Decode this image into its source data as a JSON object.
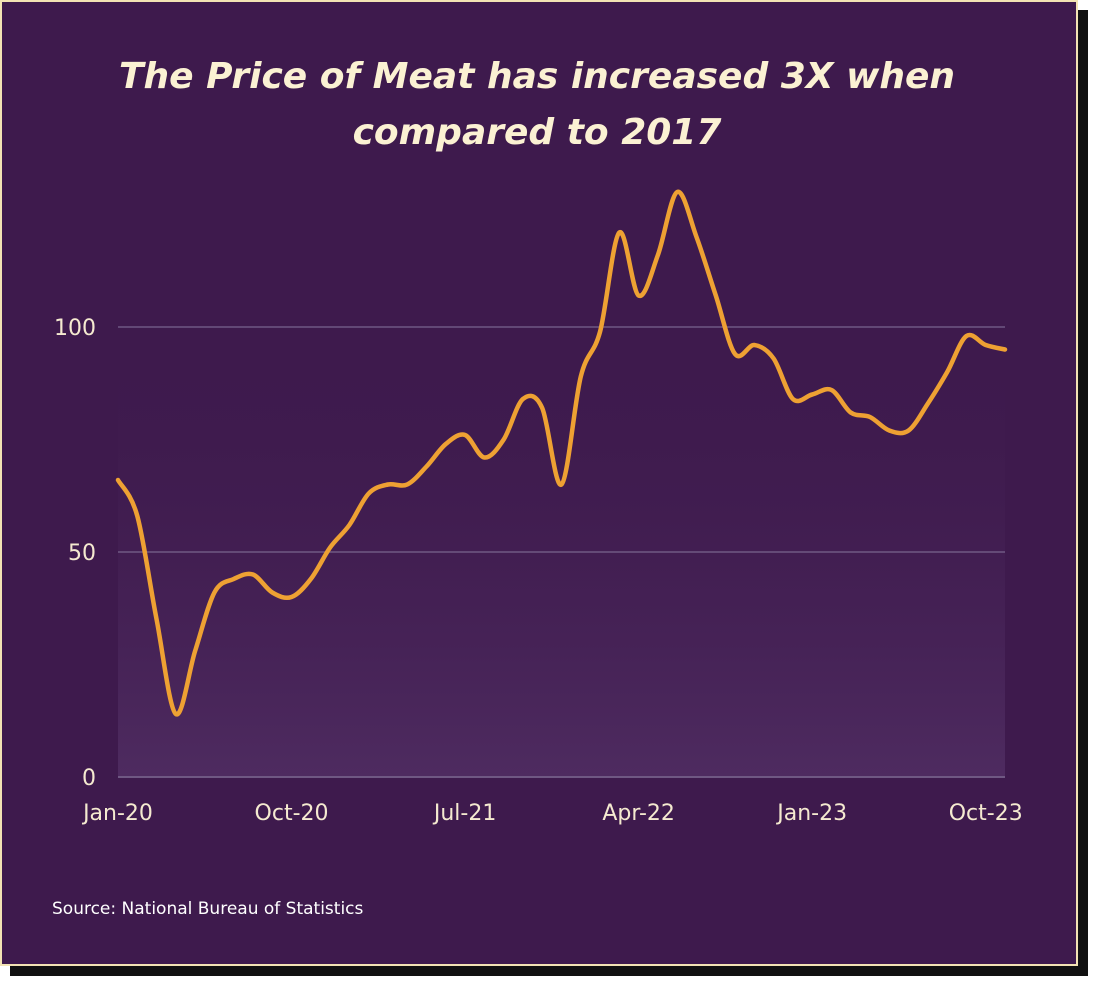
{
  "chart_data": {
    "type": "line",
    "title_lines": [
      "The Price of Meat has increased 3X when",
      "compared to 2017"
    ],
    "source": "Source: National Bureau of Statistics",
    "xlabel": "",
    "ylabel": "",
    "ylim": [
      0,
      130
    ],
    "grid": "horizontal",
    "y_ticks": [
      0,
      50,
      100
    ],
    "x_ticks": [
      "Jan-20",
      "Oct-20",
      "Jul-21",
      "Apr-22",
      "Jan-23",
      "Oct-23"
    ],
    "x": [
      "Jan-20",
      "Feb-20",
      "Mar-20",
      "Apr-20",
      "May-20",
      "Jun-20",
      "Jul-20",
      "Aug-20",
      "Sep-20",
      "Oct-20",
      "Nov-20",
      "Dec-20",
      "Jan-21",
      "Feb-21",
      "Mar-21",
      "Apr-21",
      "May-21",
      "Jun-21",
      "Jul-21",
      "Aug-21",
      "Sep-21",
      "Oct-21",
      "Nov-21",
      "Dec-21",
      "Jan-22",
      "Feb-22",
      "Mar-22",
      "Apr-22",
      "May-22",
      "Jun-22",
      "Jul-22",
      "Aug-22",
      "Sep-22",
      "Oct-22",
      "Nov-22",
      "Dec-22",
      "Jan-23",
      "Feb-23",
      "Mar-23",
      "Apr-23",
      "May-23",
      "Jun-23",
      "Jul-23",
      "Aug-23",
      "Sep-23",
      "Oct-23",
      "Nov-23"
    ],
    "series": [
      {
        "values": [
          66,
          58,
          35,
          14,
          28,
          41,
          44,
          45,
          41,
          40,
          44,
          51,
          56,
          63,
          65,
          65,
          69,
          74,
          76,
          71,
          75,
          84,
          82,
          65,
          89,
          99,
          121,
          107,
          116,
          130,
          120,
          107,
          94,
          96,
          93,
          84,
          85,
          86,
          81,
          80,
          77,
          77,
          83,
          90,
          98,
          96,
          95
        ]
      }
    ],
    "colors": {
      "background": "#3e1a4d",
      "line": "#eea133",
      "grid": "#6f5883",
      "text": "#f5ead0",
      "border": "#f3e3b4"
    }
  }
}
